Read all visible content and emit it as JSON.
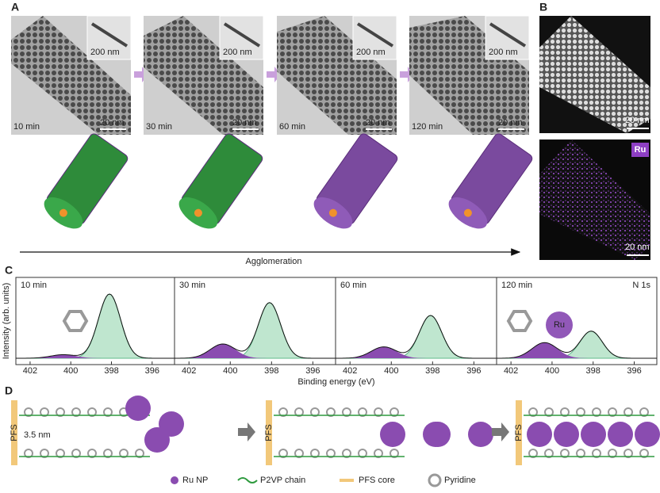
{
  "panel_labels": [
    "A",
    "B",
    "C",
    "D"
  ],
  "panel_a": {
    "times": [
      "10 min",
      "30 min",
      "60 min",
      "120 min"
    ],
    "scale_main": "20 nm",
    "scale_inset": "200 nm"
  },
  "panel_b": {
    "scale": "20 nm",
    "element": "Ru"
  },
  "agglomeration": "Agglomeration",
  "panel_c": {
    "ylabel": "Intensity (arb. units)",
    "xlabel": "Binding energy (eV)",
    "peak": "N 1s",
    "ru": "Ru",
    "panels": [
      "10 min",
      "30 min",
      "60 min",
      "120 min"
    ],
    "xlim": [
      402.7,
      394.9
    ],
    "xticks": [
      402,
      400,
      398,
      396
    ]
  },
  "panel_d": {
    "spacing": "3.5 nm",
    "core": "PFS",
    "legend": [
      "Ru NP",
      "P2VP chain",
      "PFS core",
      "Pyridine"
    ]
  }
}
